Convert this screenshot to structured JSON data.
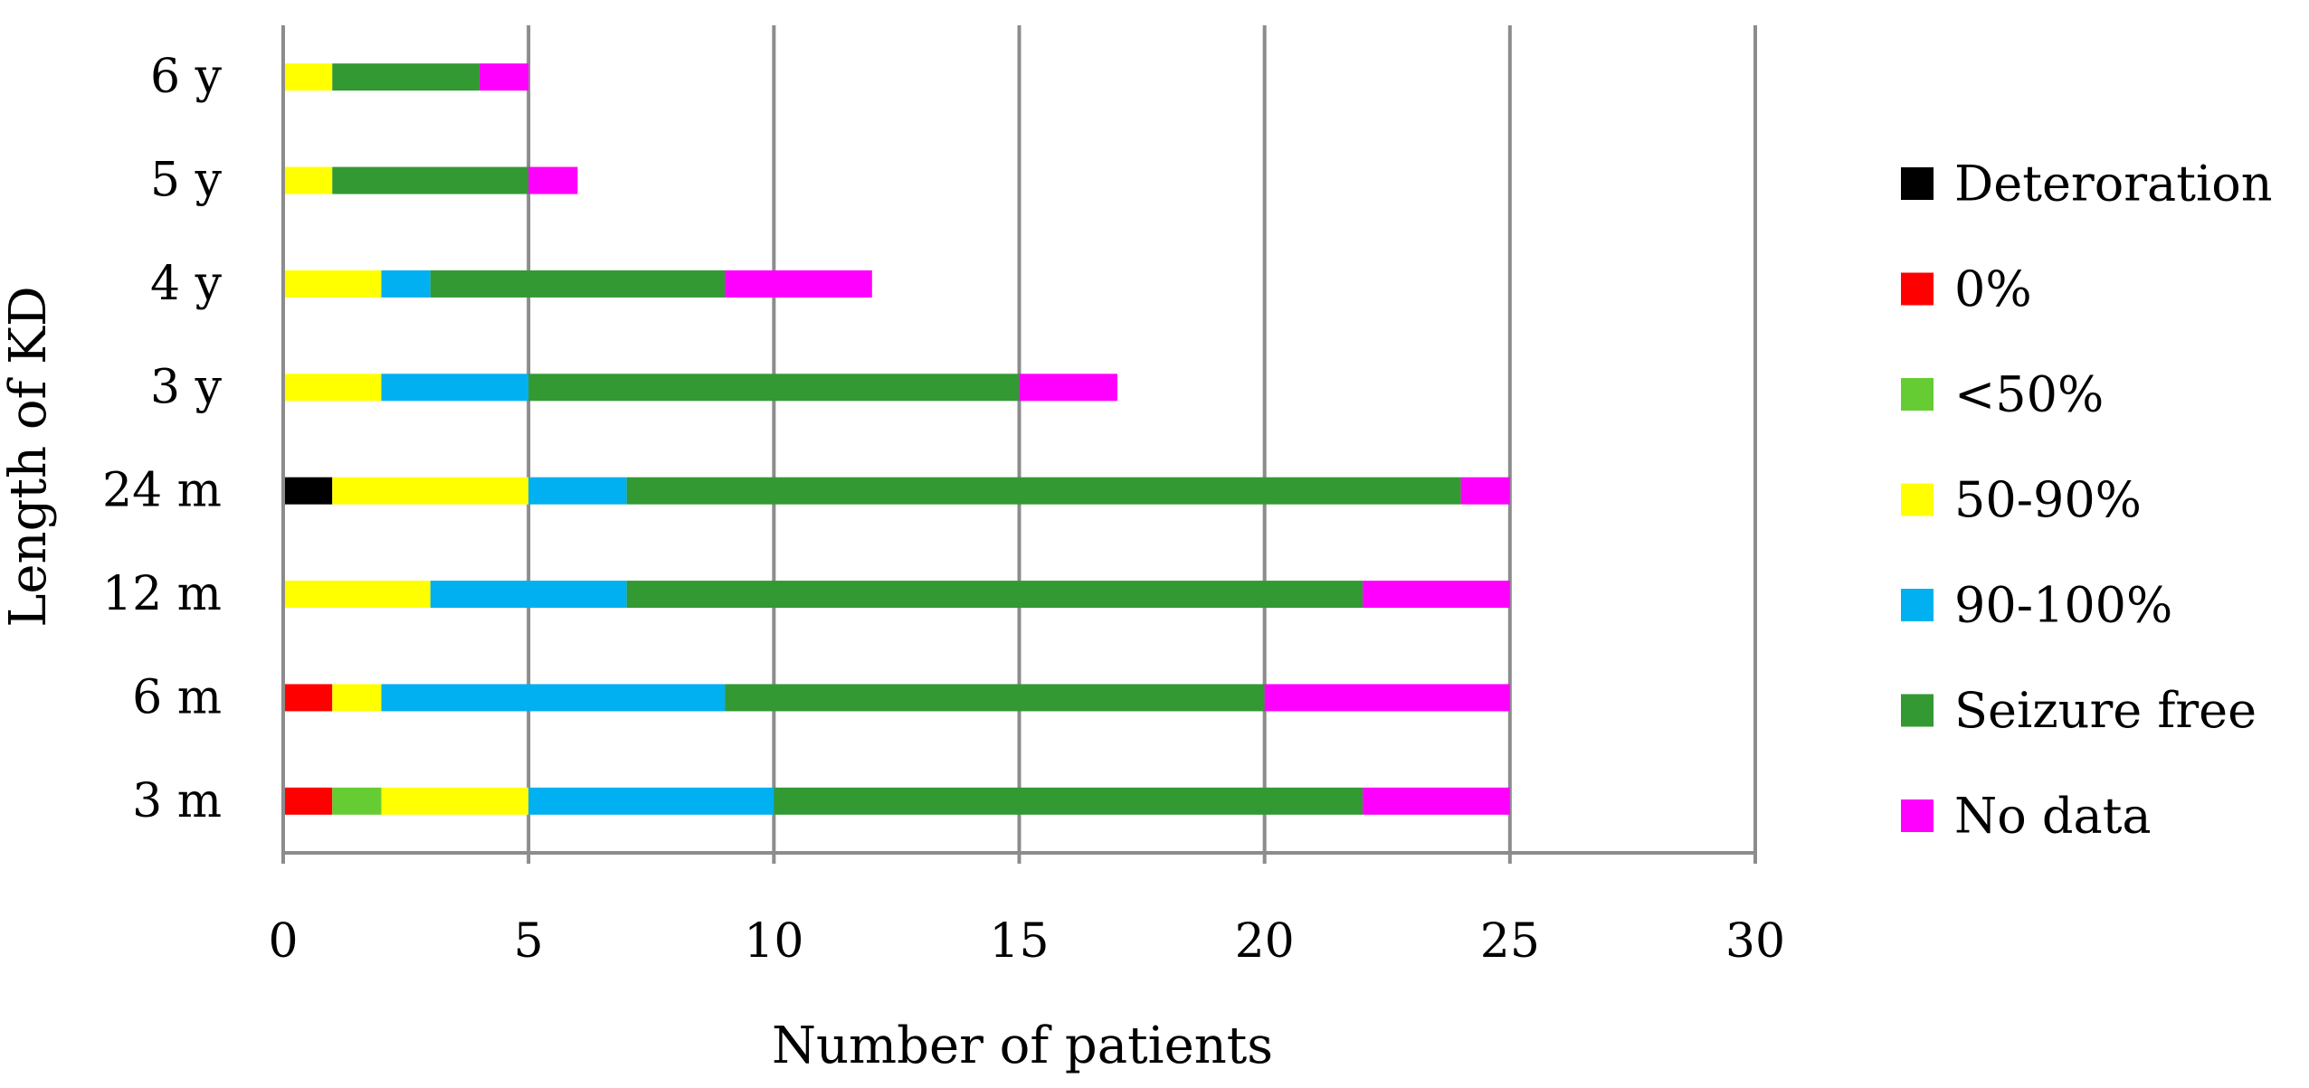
{
  "chart_data": {
    "type": "bar",
    "orientation": "horizontal",
    "stacked": true,
    "title": "",
    "xlabel": "Number of patients",
    "ylabel": "Length of KD",
    "xlim": [
      0,
      30
    ],
    "x_ticks": [
      0,
      5,
      10,
      15,
      20,
      25,
      30
    ],
    "grid": "vertical",
    "legend_position": "right",
    "categories": [
      "3 m",
      "6 m",
      "12 m",
      "24 m",
      "3 y",
      "4 y",
      "5 y",
      "6 y"
    ],
    "series": [
      {
        "name": "Deteroration",
        "color": "#000000",
        "values": [
          0,
          0,
          0,
          1,
          0,
          0,
          0,
          0
        ]
      },
      {
        "name": "0%",
        "color": "#ff0000",
        "values": [
          1,
          1,
          0,
          0,
          0,
          0,
          0,
          0
        ]
      },
      {
        "name": "<50%",
        "color": "#66cc33",
        "values": [
          1,
          0,
          0,
          0,
          0,
          0,
          0,
          0
        ]
      },
      {
        "name": "50-90%",
        "color": "#ffff00",
        "values": [
          3,
          1,
          3,
          4,
          2,
          2,
          1,
          1
        ]
      },
      {
        "name": "90-100%",
        "color": "#00b0f0",
        "values": [
          5,
          7,
          4,
          2,
          3,
          1,
          0,
          0
        ]
      },
      {
        "name": "Seizure free",
        "color": "#339933",
        "values": [
          12,
          11,
          15,
          17,
          10,
          6,
          4,
          3
        ]
      },
      {
        "name": "No data",
        "color": "#ff00ff",
        "values": [
          3,
          5,
          3,
          1,
          2,
          3,
          1,
          1
        ]
      }
    ]
  }
}
